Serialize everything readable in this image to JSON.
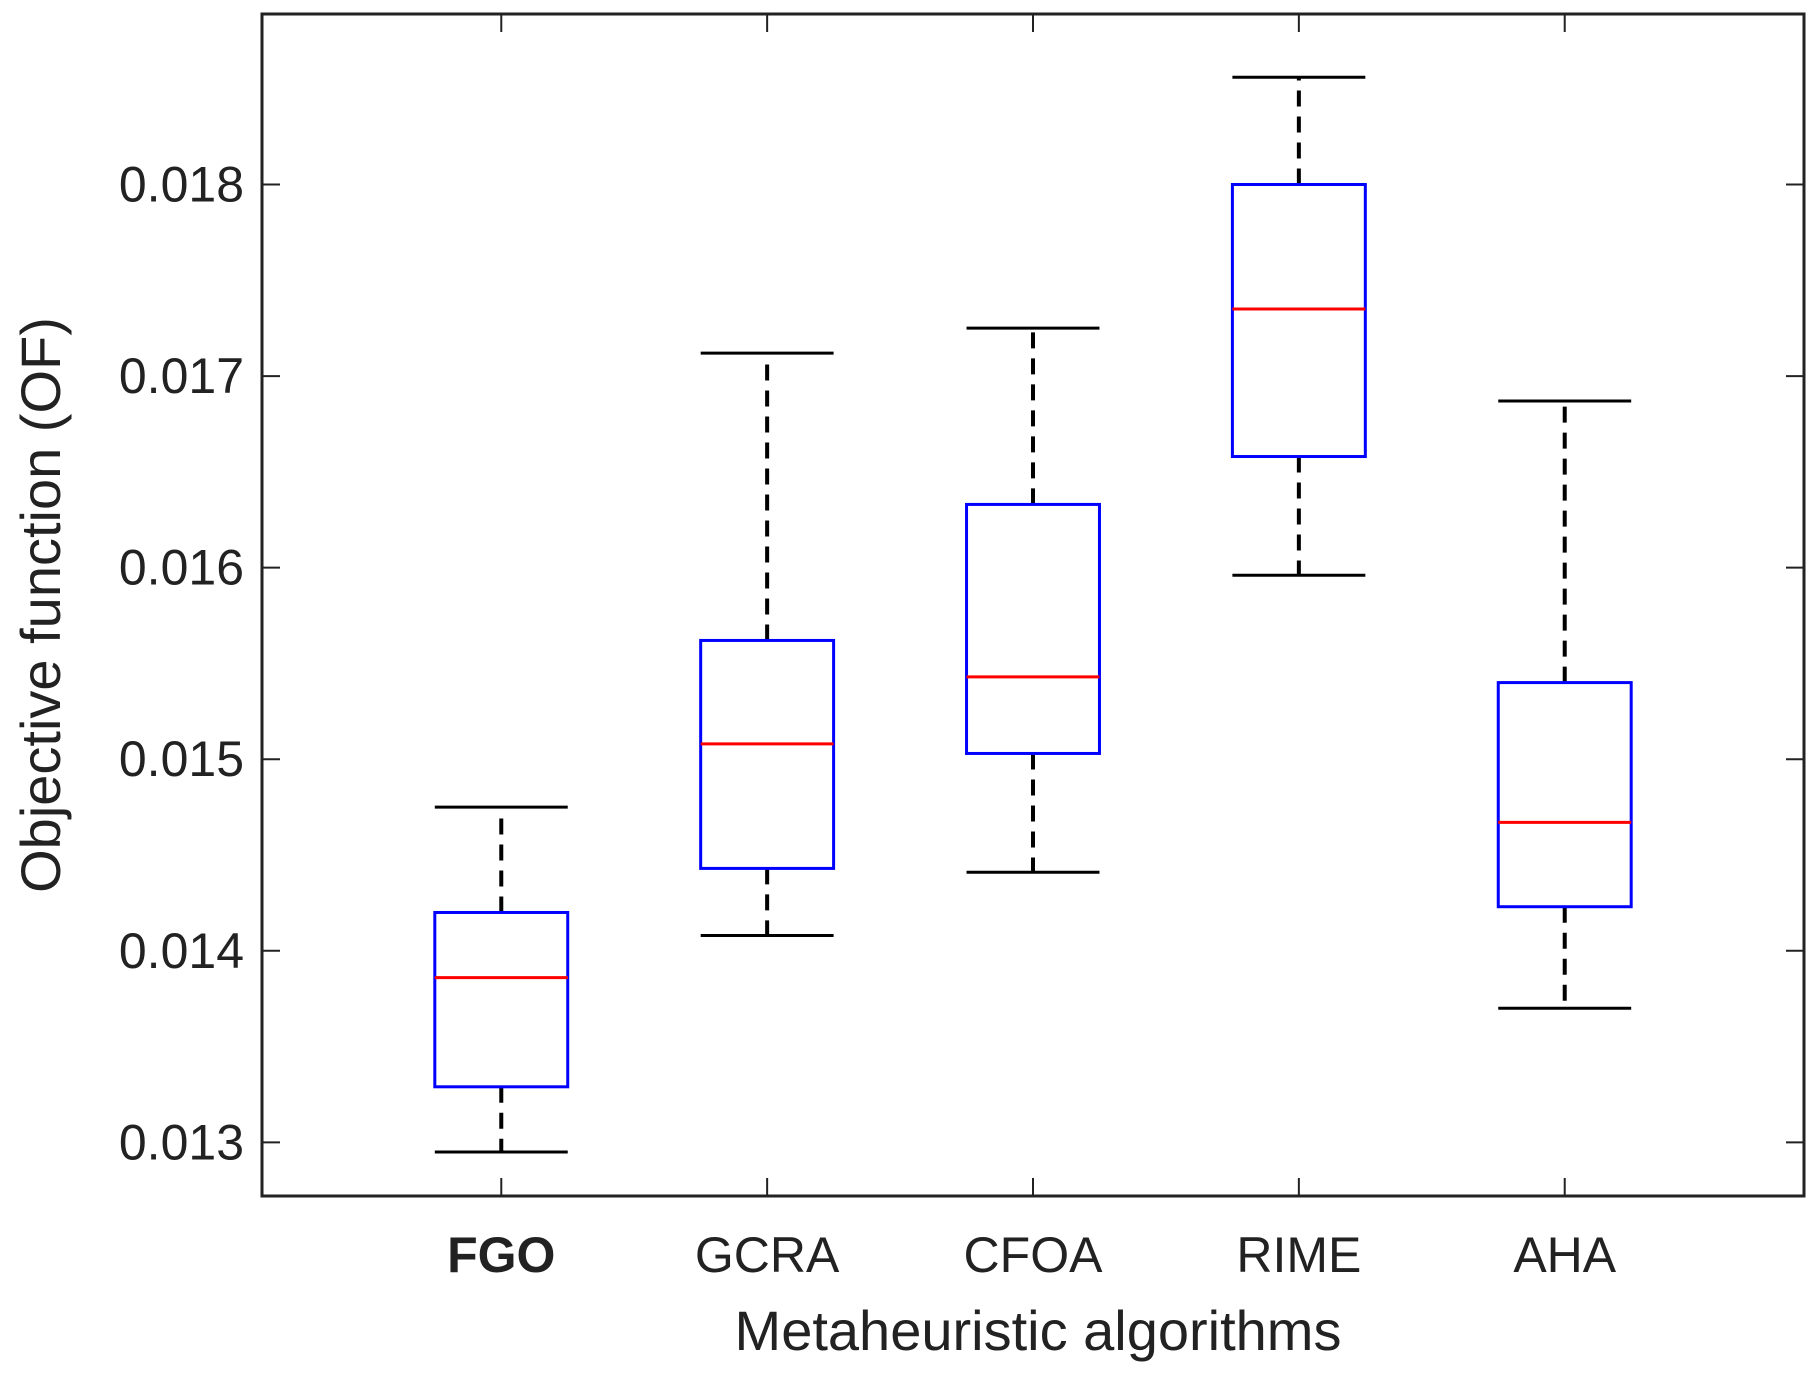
{
  "chart_data": {
    "type": "boxplot",
    "title": "",
    "xlabel": "Metaheuristic algorithms",
    "ylabel": "Objective function (OF)",
    "ylim": [
      0.01272,
      0.01889
    ],
    "yticks": [
      0.013,
      0.014,
      0.015,
      0.016,
      0.017,
      0.018
    ],
    "ytick_labels": [
      "0.013",
      "0.014",
      "0.015",
      "0.016",
      "0.017",
      "0.018"
    ],
    "categories": [
      "FGO",
      "GCRA",
      "CFOA",
      "RIME",
      "AHA"
    ],
    "bold_category": "FGO",
    "boxes": [
      {
        "name": "FGO",
        "whisker_low": 0.01295,
        "q1": 0.01329,
        "median": 0.01386,
        "q3": 0.0142,
        "whisker_high": 0.01475
      },
      {
        "name": "GCRA",
        "whisker_low": 0.01408,
        "q1": 0.01443,
        "median": 0.01508,
        "q3": 0.01562,
        "whisker_high": 0.01712
      },
      {
        "name": "CFOA",
        "whisker_low": 0.01441,
        "q1": 0.01503,
        "median": 0.01543,
        "q3": 0.01633,
        "whisker_high": 0.01725
      },
      {
        "name": "RIME",
        "whisker_low": 0.01596,
        "q1": 0.01658,
        "median": 0.01735,
        "q3": 0.018,
        "whisker_high": 0.01856
      },
      {
        "name": "AHA",
        "whisker_low": 0.0137,
        "q1": 0.01423,
        "median": 0.01467,
        "q3": 0.0154,
        "whisker_high": 0.01687
      }
    ],
    "colors": {
      "box": "#0000ff",
      "median": "#ff0000",
      "whisker": "#000000",
      "axis": "#222222"
    },
    "grid": false,
    "legend": "none"
  }
}
